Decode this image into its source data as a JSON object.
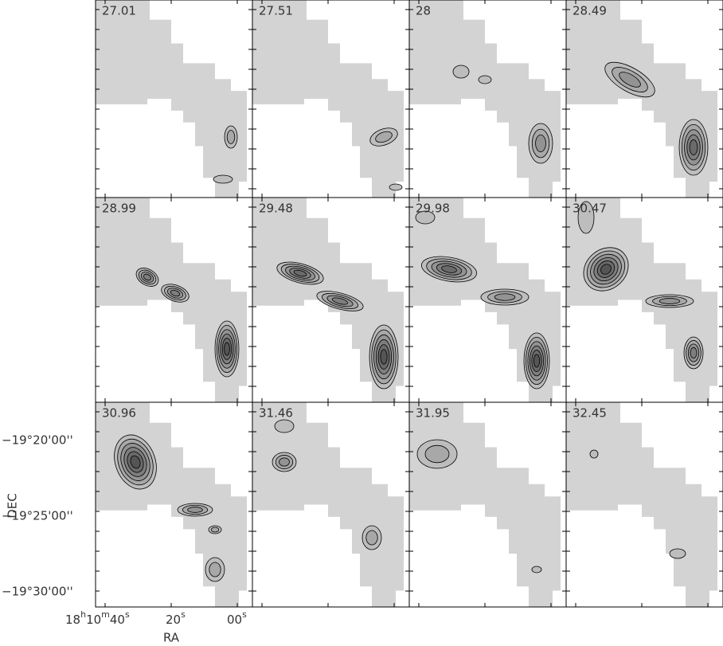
{
  "panels": [
    {
      "label": "27.01"
    },
    {
      "label": "27.51"
    },
    {
      "label": "28"
    },
    {
      "label": "28.49"
    },
    {
      "label": "28.99"
    },
    {
      "label": "29.48"
    },
    {
      "label": "29.98"
    },
    {
      "label": "30.47"
    },
    {
      "label": "30.96"
    },
    {
      "label": "31.46"
    },
    {
      "label": "31.95"
    },
    {
      "label": "32.45"
    }
  ],
  "axes": {
    "dec_label": "DEC",
    "ra_label": "RA",
    "dec_ticks": [
      "−19°20'00''",
      "−19°25'00''",
      "−19°30'00''"
    ],
    "ra_ticks": [
      "18h10m40s",
      "20s",
      "00s"
    ]
  }
}
